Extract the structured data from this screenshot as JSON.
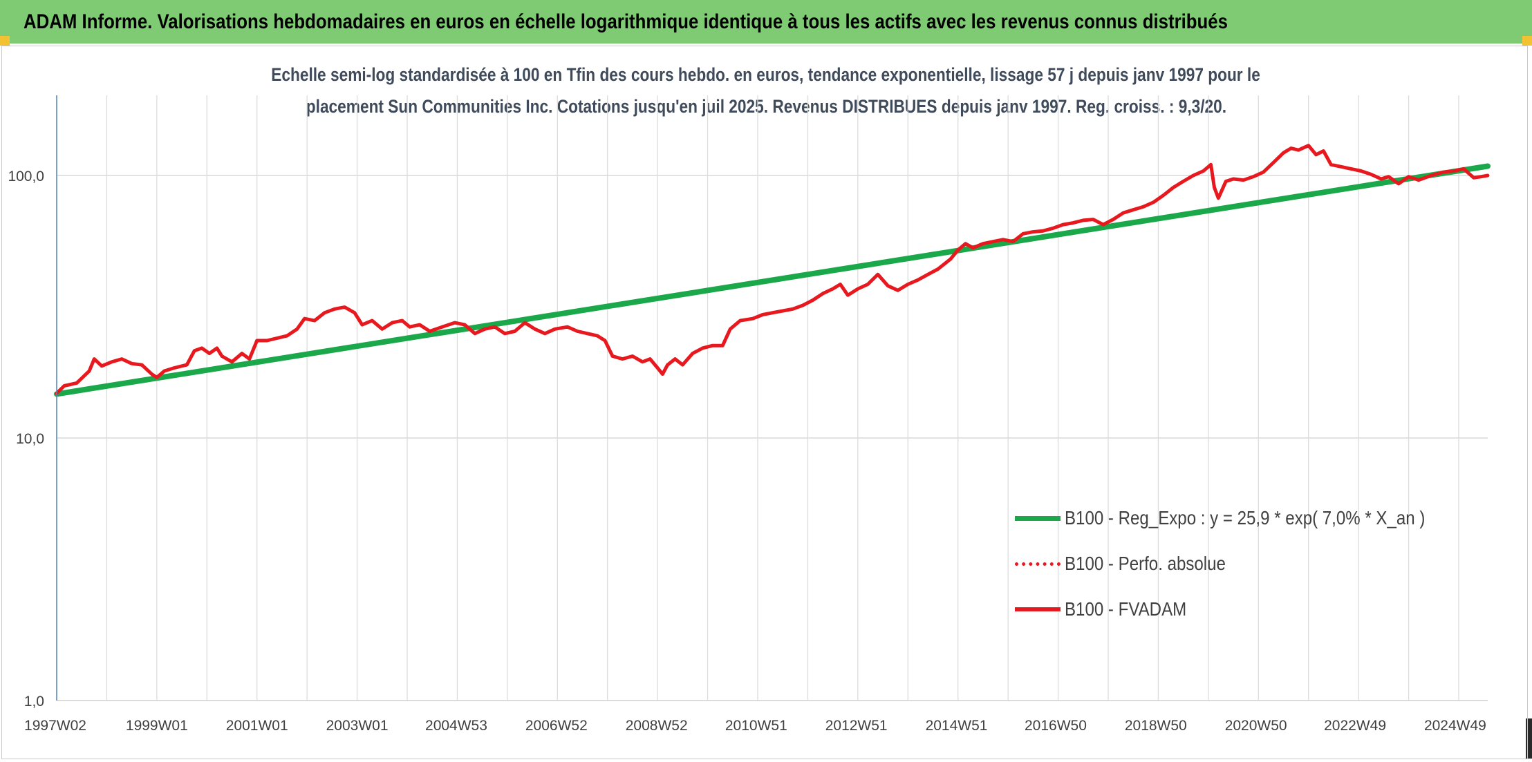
{
  "header": {
    "title": "ADAM Informe. Valorisations hebdomadaires en euros en échelle logarithmique identique à tous les actifs avec les revenus connus distribués"
  },
  "chart_data": {
    "type": "line",
    "title_lines": [
      "Echelle semi-log standardisée à 100 en Tfin des cours hebdo. en euros, tendance exponentielle, lissage 57 j depuis janv 1997 pour le",
      "placement Sun Communities Inc. Cotations jusqu'en juil 2025. Revenus DISTRIBUES depuis janv 1997. Reg. croiss. : 9,3/20."
    ],
    "y_scale": "log",
    "ylim": [
      1,
      200
    ],
    "y_ticks": [
      1,
      10,
      100
    ],
    "y_tick_labels": [
      "1,0",
      "10,0",
      "100,0"
    ],
    "xlim": [
      1997.0,
      2025.58
    ],
    "x_ticks": [
      {
        "x": 1997.0,
        "label": "1997W02"
      },
      {
        "x": 1999.0,
        "label": "1999W01"
      },
      {
        "x": 2001.0,
        "label": "2001W01"
      },
      {
        "x": 2003.0,
        "label": "2003W01"
      },
      {
        "x": 2004.98,
        "label": "2004W53"
      },
      {
        "x": 2006.98,
        "label": "2006W52"
      },
      {
        "x": 2008.98,
        "label": "2008W52"
      },
      {
        "x": 2010.97,
        "label": "2010W51"
      },
      {
        "x": 2012.97,
        "label": "2012W51"
      },
      {
        "x": 2014.97,
        "label": "2014W51"
      },
      {
        "x": 2016.95,
        "label": "2016W50"
      },
      {
        "x": 2018.95,
        "label": "2018W50"
      },
      {
        "x": 2020.95,
        "label": "2020W50"
      },
      {
        "x": 2022.93,
        "label": "2022W49"
      },
      {
        "x": 2024.93,
        "label": "2024W49"
      }
    ],
    "grid": true,
    "legend_position": "bottom-right",
    "series": [
      {
        "name": "B100 - Reg_Expo : y = 25,9 * exp( 7,0% *  X_an )",
        "color": "#1aa84a",
        "style": "solid",
        "points": [
          [
            1997.0,
            14.7
          ],
          [
            2025.58,
            108.5
          ]
        ]
      },
      {
        "name": "B100 - Perfo. absolue",
        "color": "#e8191e",
        "style": "dotted",
        "points": []
      },
      {
        "name": "B100 - FVADAM",
        "color": "#e8191e",
        "style": "solid",
        "points": [
          [
            1997.0,
            14.8
          ],
          [
            1997.15,
            15.8
          ],
          [
            1997.4,
            16.2
          ],
          [
            1997.65,
            18.0
          ],
          [
            1997.75,
            20.0
          ],
          [
            1997.9,
            18.8
          ],
          [
            1998.1,
            19.5
          ],
          [
            1998.3,
            20.0
          ],
          [
            1998.5,
            19.2
          ],
          [
            1998.7,
            19.0
          ],
          [
            1998.9,
            17.5
          ],
          [
            1999.0,
            17.0
          ],
          [
            1999.15,
            18.0
          ],
          [
            1999.35,
            18.5
          ],
          [
            1999.6,
            19.0
          ],
          [
            1999.75,
            21.5
          ],
          [
            1999.9,
            22.0
          ],
          [
            2000.05,
            21.0
          ],
          [
            2000.2,
            22.0
          ],
          [
            2000.3,
            20.5
          ],
          [
            2000.5,
            19.5
          ],
          [
            2000.7,
            21.0
          ],
          [
            2000.85,
            20.0
          ],
          [
            2001.0,
            23.5
          ],
          [
            2001.2,
            23.5
          ],
          [
            2001.4,
            24.0
          ],
          [
            2001.6,
            24.5
          ],
          [
            2001.8,
            26.0
          ],
          [
            2001.95,
            28.5
          ],
          [
            2002.15,
            28.0
          ],
          [
            2002.35,
            30.0
          ],
          [
            2002.55,
            31.0
          ],
          [
            2002.75,
            31.5
          ],
          [
            2002.95,
            30.0
          ],
          [
            2003.1,
            27.0
          ],
          [
            2003.3,
            28.0
          ],
          [
            2003.5,
            26.0
          ],
          [
            2003.7,
            27.5
          ],
          [
            2003.9,
            28.0
          ],
          [
            2004.05,
            26.5
          ],
          [
            2004.25,
            27.0
          ],
          [
            2004.45,
            25.5
          ],
          [
            2004.7,
            26.5
          ],
          [
            2004.95,
            27.5
          ],
          [
            2005.15,
            27.0
          ],
          [
            2005.35,
            25.0
          ],
          [
            2005.55,
            26.0
          ],
          [
            2005.75,
            26.5
          ],
          [
            2005.95,
            25.0
          ],
          [
            2006.15,
            25.5
          ],
          [
            2006.35,
            27.5
          ],
          [
            2006.55,
            26.0
          ],
          [
            2006.75,
            25.0
          ],
          [
            2006.95,
            26.0
          ],
          [
            2007.2,
            26.5
          ],
          [
            2007.4,
            25.5
          ],
          [
            2007.6,
            25.0
          ],
          [
            2007.8,
            24.5
          ],
          [
            2007.95,
            23.5
          ],
          [
            2008.1,
            20.5
          ],
          [
            2008.3,
            20.0
          ],
          [
            2008.5,
            20.5
          ],
          [
            2008.7,
            19.5
          ],
          [
            2008.85,
            20.0
          ],
          [
            2009.0,
            18.5
          ],
          [
            2009.1,
            17.5
          ],
          [
            2009.2,
            19.0
          ],
          [
            2009.35,
            20.0
          ],
          [
            2009.5,
            19.0
          ],
          [
            2009.7,
            21.0
          ],
          [
            2009.9,
            22.0
          ],
          [
            2010.1,
            22.5
          ],
          [
            2010.3,
            22.5
          ],
          [
            2010.45,
            26.0
          ],
          [
            2010.65,
            28.0
          ],
          [
            2010.9,
            28.5
          ],
          [
            2011.1,
            29.5
          ],
          [
            2011.3,
            30.0
          ],
          [
            2011.5,
            30.5
          ],
          [
            2011.7,
            31.0
          ],
          [
            2011.9,
            32.0
          ],
          [
            2012.1,
            33.5
          ],
          [
            2012.3,
            35.5
          ],
          [
            2012.5,
            37.0
          ],
          [
            2012.65,
            38.5
          ],
          [
            2012.8,
            35.0
          ],
          [
            2013.0,
            37.0
          ],
          [
            2013.2,
            38.5
          ],
          [
            2013.4,
            42.0
          ],
          [
            2013.6,
            38.0
          ],
          [
            2013.8,
            36.5
          ],
          [
            2014.0,
            38.5
          ],
          [
            2014.2,
            40.0
          ],
          [
            2014.4,
            42.0
          ],
          [
            2014.6,
            44.0
          ],
          [
            2014.85,
            48.0
          ],
          [
            2015.0,
            52.0
          ],
          [
            2015.15,
            55.0
          ],
          [
            2015.3,
            53.0
          ],
          [
            2015.5,
            55.0
          ],
          [
            2015.7,
            56.0
          ],
          [
            2015.9,
            57.0
          ],
          [
            2016.1,
            56.0
          ],
          [
            2016.3,
            60.0
          ],
          [
            2016.5,
            61.0
          ],
          [
            2016.7,
            61.5
          ],
          [
            2016.9,
            63.0
          ],
          [
            2017.1,
            65.0
          ],
          [
            2017.3,
            66.0
          ],
          [
            2017.5,
            67.5
          ],
          [
            2017.7,
            68.0
          ],
          [
            2017.9,
            65.0
          ],
          [
            2018.1,
            68.0
          ],
          [
            2018.3,
            72.0
          ],
          [
            2018.5,
            74.0
          ],
          [
            2018.7,
            76.0
          ],
          [
            2018.9,
            79.0
          ],
          [
            2019.1,
            84.0
          ],
          [
            2019.3,
            90.0
          ],
          [
            2019.5,
            95.0
          ],
          [
            2019.7,
            100.0
          ],
          [
            2019.9,
            104.0
          ],
          [
            2020.05,
            110.0
          ],
          [
            2020.12,
            90.0
          ],
          [
            2020.2,
            82.0
          ],
          [
            2020.35,
            95.0
          ],
          [
            2020.5,
            97.0
          ],
          [
            2020.7,
            96.0
          ],
          [
            2020.9,
            99.0
          ],
          [
            2021.1,
            103.0
          ],
          [
            2021.3,
            112.0
          ],
          [
            2021.5,
            122.0
          ],
          [
            2021.65,
            127.0
          ],
          [
            2021.8,
            125.0
          ],
          [
            2022.0,
            130.0
          ],
          [
            2022.15,
            120.0
          ],
          [
            2022.3,
            124.0
          ],
          [
            2022.45,
            110.0
          ],
          [
            2022.65,
            108.0
          ],
          [
            2022.85,
            106.0
          ],
          [
            2023.05,
            104.0
          ],
          [
            2023.25,
            101.0
          ],
          [
            2023.45,
            97.0
          ],
          [
            2023.6,
            99.0
          ],
          [
            2023.8,
            93.0
          ],
          [
            2024.0,
            99.0
          ],
          [
            2024.2,
            96.0
          ],
          [
            2024.45,
            100.0
          ],
          [
            2024.7,
            103.0
          ],
          [
            2024.9,
            104.0
          ],
          [
            2025.1,
            106.0
          ],
          [
            2025.3,
            98.0
          ],
          [
            2025.45,
            99.0
          ],
          [
            2025.58,
            100.0
          ]
        ]
      }
    ]
  }
}
